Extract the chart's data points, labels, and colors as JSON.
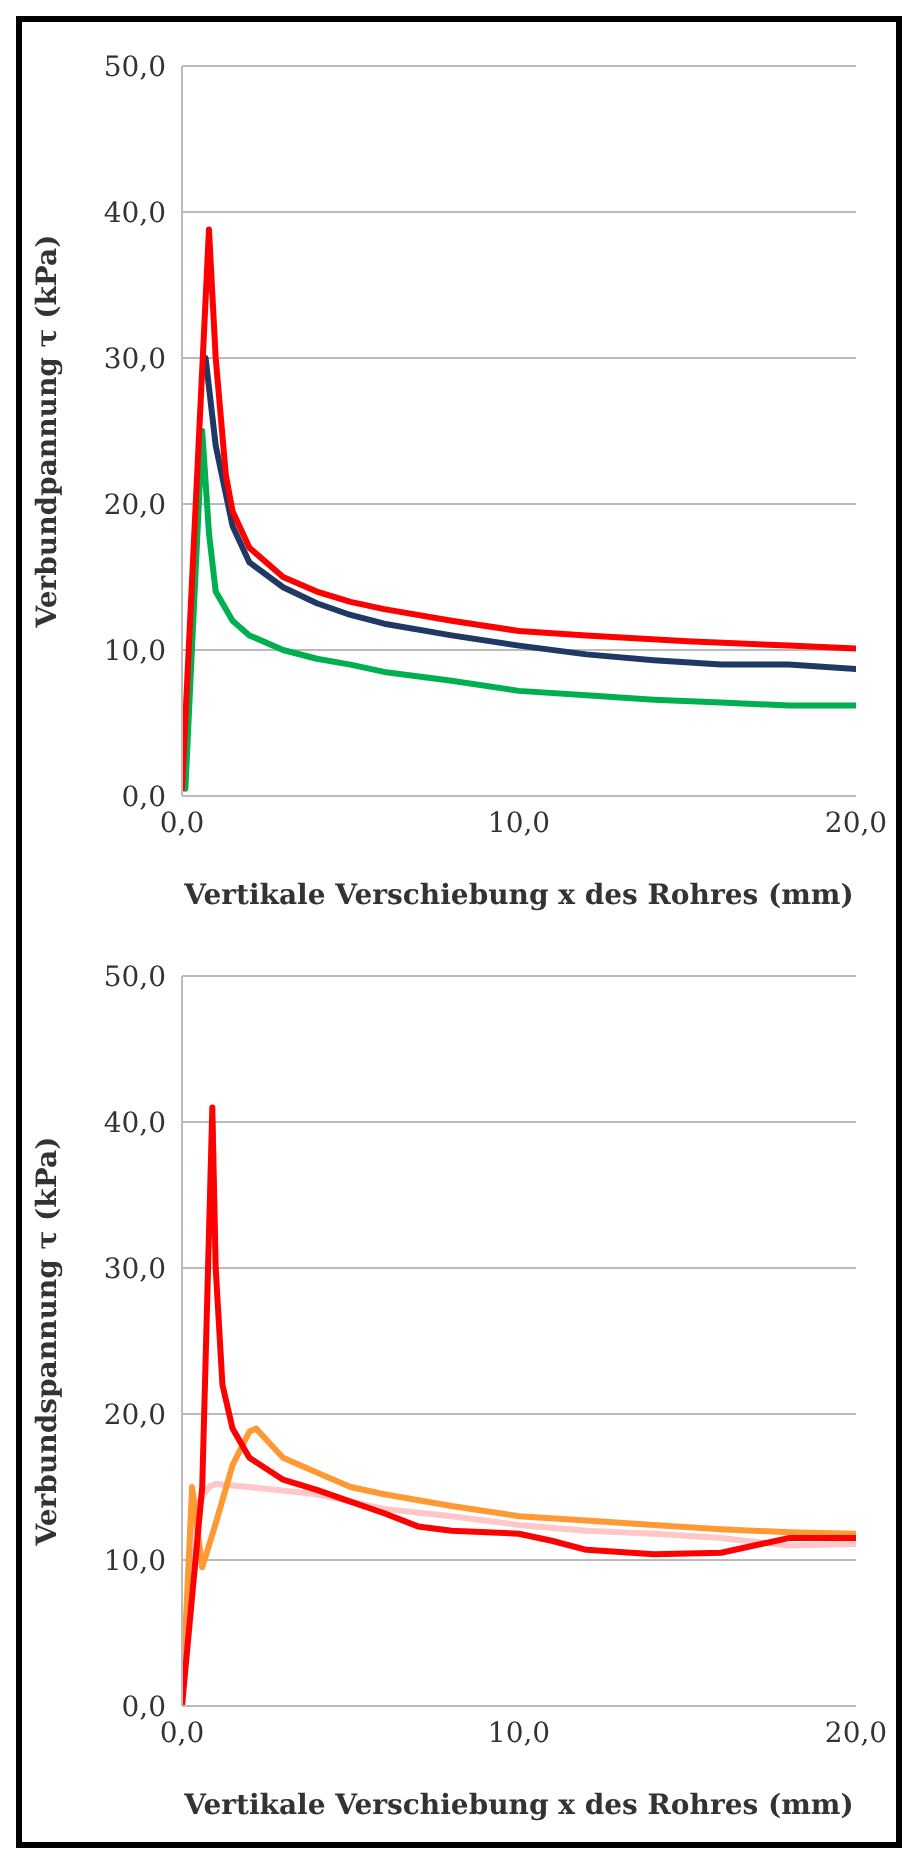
{
  "chart_data": [
    {
      "type": "line",
      "xlabel": "Vertikale Verschiebung x des Rohres (mm)",
      "ylabel": "Verbundpannung τ (kPa)",
      "xlim": [
        0,
        20
      ],
      "ylim": [
        0,
        50
      ],
      "xticks": [
        {
          "value": 0,
          "label": "0,0"
        },
        {
          "value": 10,
          "label": "10,0"
        },
        {
          "value": 20,
          "label": "20,0"
        }
      ],
      "yticks": [
        {
          "value": 0,
          "label": "0,0"
        },
        {
          "value": 10,
          "label": "10,0"
        },
        {
          "value": 20,
          "label": "20,0"
        },
        {
          "value": 30,
          "label": "30,0"
        },
        {
          "value": 40,
          "label": "40,0"
        },
        {
          "value": 50,
          "label": "50,0"
        }
      ],
      "grid": "y",
      "legend": false,
      "marker": "none",
      "series": [
        {
          "color": "#00b050",
          "x": [
            0.1,
            0.6,
            0.8,
            1,
            1.5,
            2,
            3,
            4,
            5,
            6,
            8,
            10,
            12,
            14,
            16,
            18,
            20
          ],
          "values": [
            0.5,
            25,
            18,
            14,
            12,
            11,
            10,
            9.4,
            9,
            8.5,
            7.9,
            7.2,
            6.9,
            6.6,
            6.4,
            6.2,
            6.2
          ]
        },
        {
          "color": "#1f3864",
          "x": [
            0.7,
            1,
            1.5,
            2,
            3,
            4,
            5,
            6,
            8,
            10,
            12,
            14,
            16,
            18,
            20
          ],
          "values": [
            30,
            24,
            18.5,
            16,
            14.3,
            13.2,
            12.4,
            11.8,
            11,
            10.3,
            9.7,
            9.3,
            9,
            9,
            8.7
          ]
        },
        {
          "color": "#ff0000",
          "x": [
            0,
            0.8,
            1,
            1.3,
            1.5,
            2,
            3,
            4,
            5,
            6,
            8,
            10,
            12,
            15,
            18,
            20
          ],
          "values": [
            0.5,
            38.8,
            30,
            22,
            19.5,
            17,
            15,
            14,
            13.3,
            12.8,
            12,
            11.3,
            11,
            10.6,
            10.3,
            10.1
          ]
        }
      ]
    },
    {
      "type": "line",
      "xlabel": "Vertikale Verschiebung x des Rohres (mm)",
      "ylabel": "Verbundspannung τ (kPa)",
      "xlim": [
        0,
        20
      ],
      "ylim": [
        0,
        50
      ],
      "xticks": [
        {
          "value": 0,
          "label": "0,0"
        },
        {
          "value": 10,
          "label": "10,0"
        },
        {
          "value": 20,
          "label": "20,0"
        }
      ],
      "yticks": [
        {
          "value": 0,
          "label": "0,0"
        },
        {
          "value": 10,
          "label": "10,0"
        },
        {
          "value": 20,
          "label": "20,0"
        },
        {
          "value": 30,
          "label": "30,0"
        },
        {
          "value": 40,
          "label": "40,0"
        },
        {
          "value": 50,
          "label": "50,0"
        }
      ],
      "grid": "y",
      "legend": false,
      "marker": "none",
      "series": [
        {
          "color": "#ffc7c7",
          "x": [
            0,
            0.3,
            0.5,
            0.8,
            1,
            2,
            4,
            6,
            8,
            10,
            12,
            14,
            16,
            18,
            20
          ],
          "values": [
            0,
            10,
            14,
            15,
            15.2,
            15,
            14.5,
            13.5,
            13,
            12.4,
            12,
            11.8,
            11.5,
            11,
            11.1
          ]
        },
        {
          "color": "#ff9933",
          "x": [
            0,
            0.3,
            0.6,
            1,
            1.5,
            2,
            2.2,
            2.6,
            3,
            4,
            5,
            6,
            8,
            10,
            12,
            14,
            16,
            18,
            20
          ],
          "values": [
            0,
            15,
            9.5,
            12.5,
            16.5,
            18.8,
            19,
            18,
            17,
            16,
            15,
            14.5,
            13.7,
            13,
            12.7,
            12.4,
            12.1,
            11.9,
            11.8
          ]
        },
        {
          "color": "#ff0000",
          "x": [
            0,
            0.6,
            0.9,
            1,
            1.2,
            1.5,
            2,
            3,
            4,
            5,
            6,
            7,
            8,
            10,
            11,
            12,
            14,
            16,
            18,
            20
          ],
          "values": [
            0,
            15,
            41,
            30,
            22,
            19,
            17,
            15.5,
            14.8,
            14,
            13.2,
            12.3,
            12,
            11.8,
            11.3,
            10.7,
            10.4,
            10.5,
            11.5,
            11.5
          ]
        }
      ]
    }
  ]
}
